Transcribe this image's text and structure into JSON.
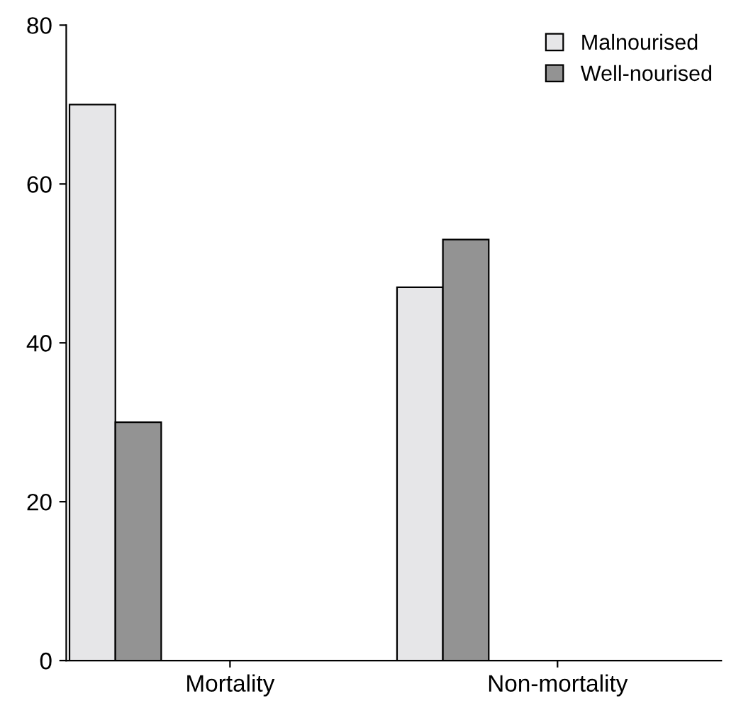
{
  "chart_data": {
    "type": "bar",
    "categories": [
      "Mortality",
      "Non-mortality"
    ],
    "series": [
      {
        "name": "Malnourised",
        "color": "#e6e6e8",
        "values": [
          70,
          47
        ]
      },
      {
        "name": "Well-nourised",
        "color": "#939393",
        "values": [
          30,
          53
        ]
      }
    ],
    "ylim": [
      0,
      80
    ],
    "yticks": [
      0,
      20,
      40,
      60,
      80
    ],
    "legend": "top right",
    "grid": false
  }
}
